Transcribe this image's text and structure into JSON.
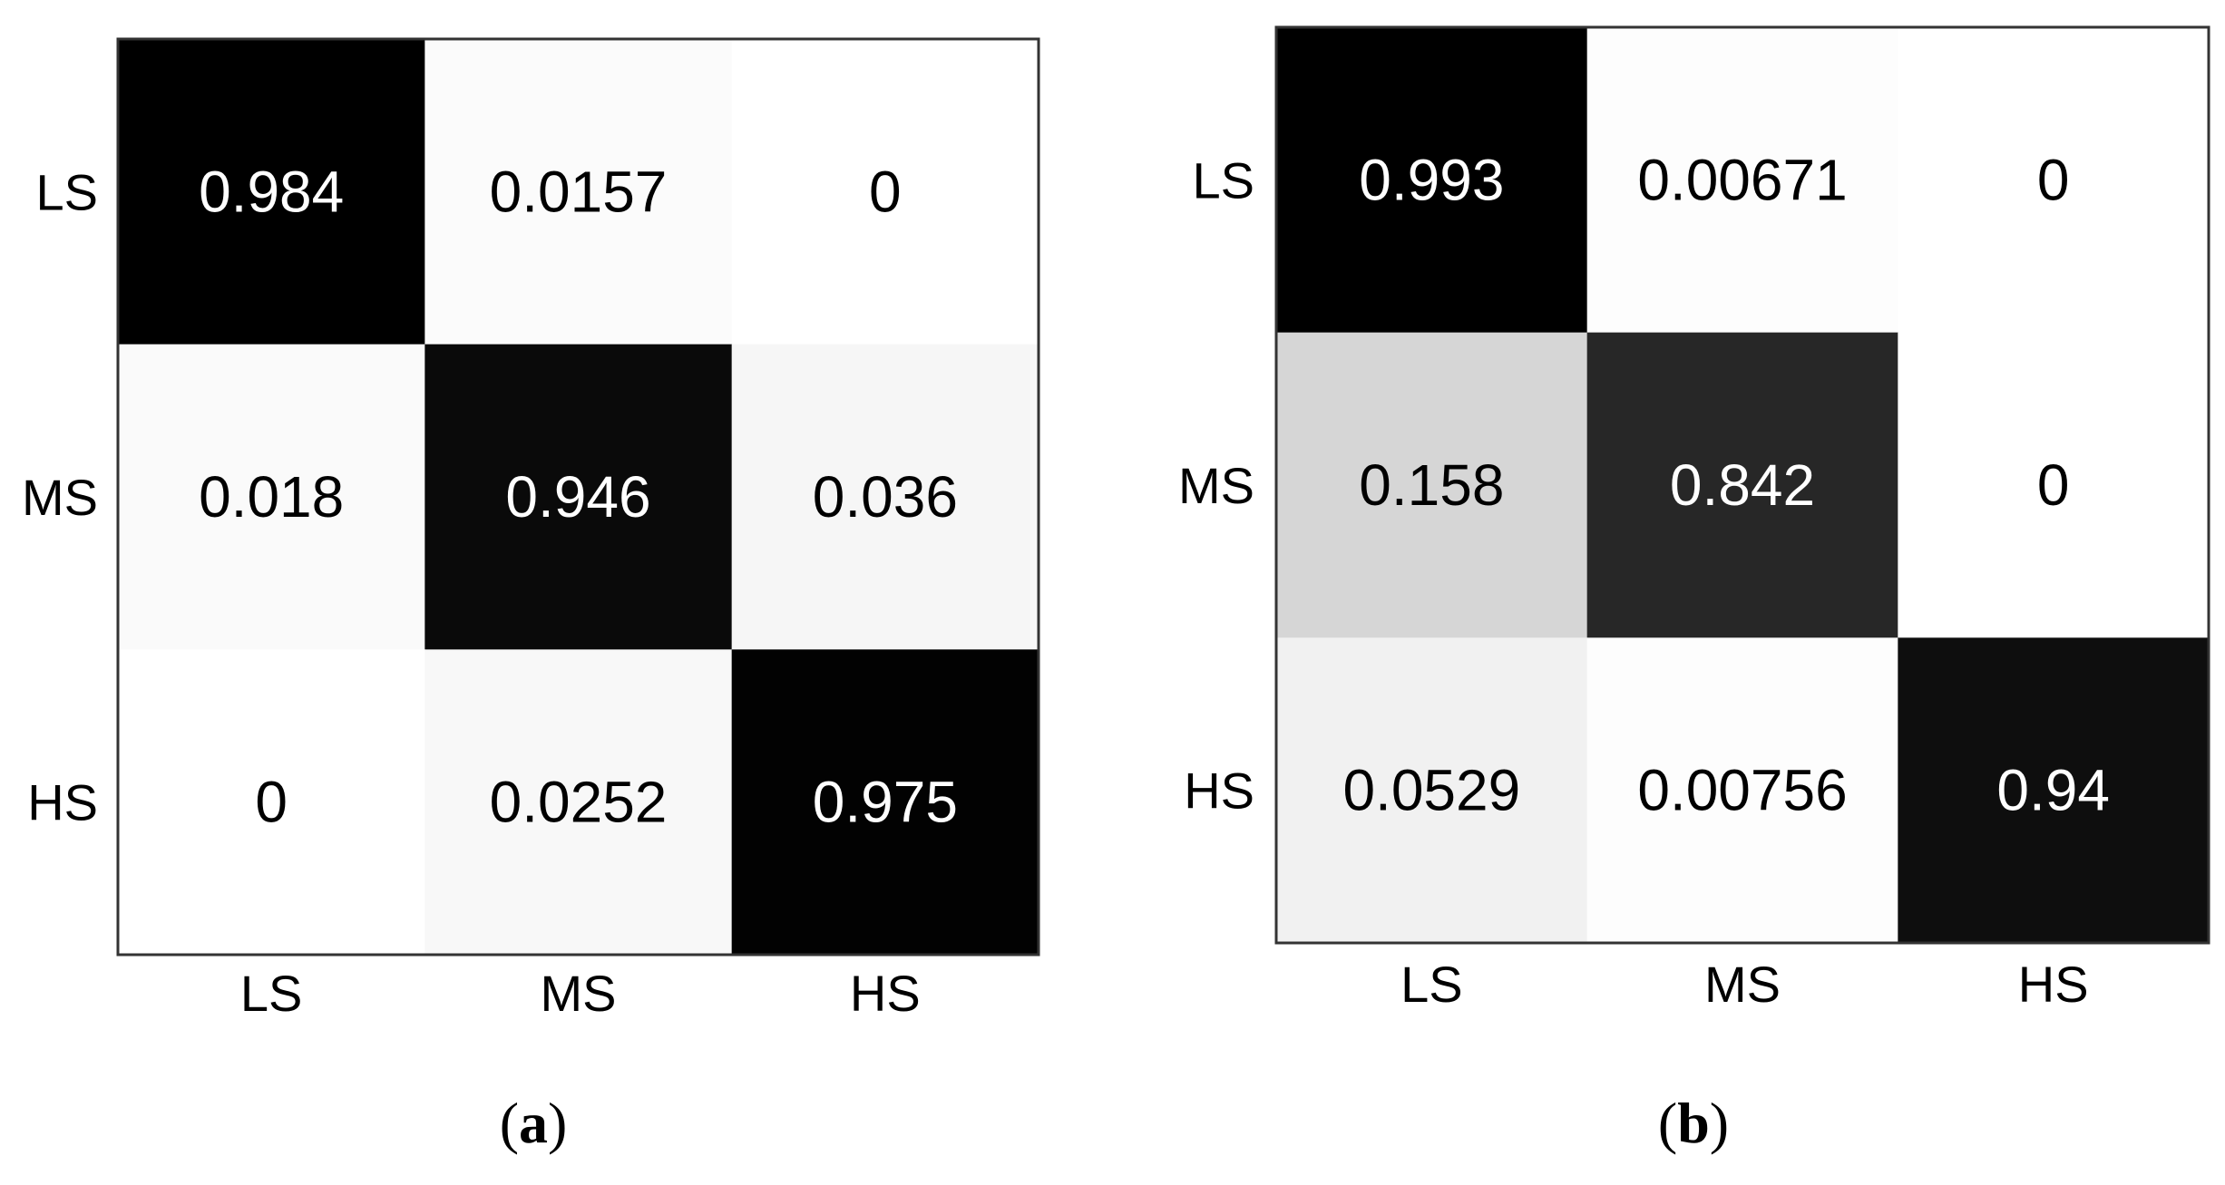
{
  "chart_data": [
    {
      "type": "heatmap",
      "panel": {
        "open": "(",
        "letter": "a",
        "close": ")"
      },
      "rows": [
        "LS",
        "MS",
        "HS"
      ],
      "columns": [
        "LS",
        "MS",
        "HS"
      ],
      "values": [
        [
          0.984,
          0.0157,
          0
        ],
        [
          0.018,
          0.946,
          0.036
        ],
        [
          0,
          0.0252,
          0.975
        ]
      ],
      "labels": [
        [
          "0.984",
          "0.0157",
          "0"
        ],
        [
          "0.018",
          "0.946",
          "0.036"
        ],
        [
          "0",
          "0.0252",
          "0.975"
        ]
      ],
      "colormap": {
        "low": "#ffffff",
        "high": "#000000"
      },
      "grid": false
    },
    {
      "type": "heatmap",
      "panel": {
        "open": "(",
        "letter": "b",
        "close": ")"
      },
      "rows": [
        "LS",
        "MS",
        "HS"
      ],
      "columns": [
        "LS",
        "MS",
        "HS"
      ],
      "values": [
        [
          0.993,
          0.00671,
          0
        ],
        [
          0.158,
          0.842,
          0
        ],
        [
          0.0529,
          0.00756,
          0.94
        ]
      ],
      "labels": [
        [
          "0.993",
          "0.00671",
          "0"
        ],
        [
          "0.158",
          "0.842",
          "0"
        ],
        [
          "0.0529",
          "0.00756",
          "0.94"
        ]
      ],
      "colormap": {
        "low": "#ffffff",
        "high": "#000000"
      },
      "grid": false
    }
  ]
}
